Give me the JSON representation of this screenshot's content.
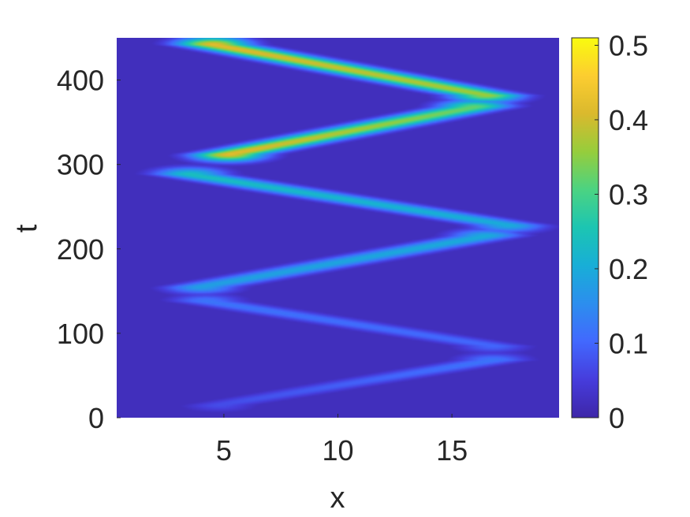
{
  "chart_data": {
    "type": "heatmap",
    "title": "",
    "xlabel": "x",
    "ylabel": "t",
    "xlim": [
      0.3,
      19.7
    ],
    "ylim": [
      0,
      450
    ],
    "x_ticks": [
      5,
      10,
      15
    ],
    "y_ticks": [
      0,
      100,
      200,
      300,
      400
    ],
    "grid": false,
    "colormap": "parula",
    "colorbar": {
      "range": [
        0,
        0.51
      ],
      "ticks": [
        0,
        0.1,
        0.2,
        0.3,
        0.4,
        0.5
      ],
      "tick_labels": [
        "0",
        "0.1",
        "0.2",
        "0.3",
        "0.4",
        "0.5"
      ]
    },
    "background_value": 0.02,
    "wave_segments": [
      {
        "t_start": 15,
        "x_start": 4.8,
        "t_end": 68,
        "x_end": 16.8,
        "peak_start": 0.07,
        "peak_end": 0.12
      },
      {
        "t_start": 138,
        "x_start": 4.2,
        "t_end": 85,
        "x_end": 16.8,
        "peak_start": 0.12,
        "peak_end": 0.1
      },
      {
        "t_start": 155,
        "x_start": 4.0,
        "t_end": 215,
        "x_end": 16.5,
        "peak_start": 0.18,
        "peak_end": 0.2
      },
      {
        "t_start": 288,
        "x_start": 3.5,
        "t_end": 228,
        "x_end": 17.5,
        "peak_start": 0.24,
        "peak_end": 0.2
      },
      {
        "t_start": 312,
        "x_start": 5.2,
        "t_end": 368,
        "x_end": 16.0,
        "peak_start": 0.42,
        "peak_end": 0.32
      },
      {
        "t_start": 442,
        "x_start": 4.5,
        "t_end": 382,
        "x_end": 16.5,
        "peak_start": 0.42,
        "peak_end": 0.36
      }
    ]
  }
}
